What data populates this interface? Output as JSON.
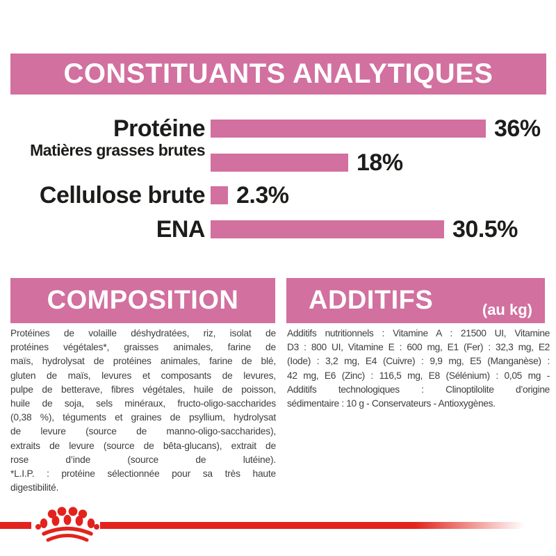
{
  "banner": {
    "title": "CONSTITUANTS ANALYTIQUES"
  },
  "chart_data": {
    "type": "bar",
    "orientation": "horizontal",
    "title": "CONSTITUANTS ANALYTIQUES",
    "unit": "%",
    "categories": [
      "Protéine",
      "Matières grasses brutes",
      "Cellulose brute",
      "ENA"
    ],
    "values": [
      36,
      18,
      2.3,
      30.5
    ],
    "value_labels": [
      "36%",
      "18%",
      "2.3%",
      "30.5%"
    ],
    "xlim": [
      0,
      36.9
    ],
    "bar_color": "#d2709f",
    "grid": false,
    "legend": "none"
  },
  "composition": {
    "heading": "COMPOSITION",
    "lines": [
      "Protéines de volaille déshydratées, riz, isolat de",
      "protéines végétales*, graisses animales, farine de",
      "maïs, hydrolysat de protéines animales, farine de blé,",
      "gluten de maïs, levures et composants de levures,",
      "pulpe de betterave, fibres végétales, huile de poisson,",
      "huile de soja, sels minéraux, fructo-oligo-saccharides",
      "(0,38 %), téguments et graines de psyllium, hydrolysat",
      "de levure (source de manno-oligo-saccharides),",
      "extraits de levure (source de bêta-glucans), extrait de",
      "rose d’inde (source de lutéine).",
      "*L.I.P. : protéine sélectionnée pour sa très haute",
      "digestibilité."
    ]
  },
  "additifs": {
    "heading": "ADDITIFS",
    "heading_suffix": "(au kg)",
    "lines": [
      "Additifs nutritionnels : Vitamine A : 21500 UI, Vitamine",
      "D3 : 800 UI, Vitamine E : 600 mg, E1 (Fer) : 32,3 mg, E2",
      "(Iode) : 3,2 mg, E4 (Cuivre) : 9,9 mg, E5 (Manganèse) :",
      "42 mg, E6 (Zinc) : 116,5 mg, E8 (Sélénium) : 0,05 mg -",
      "Additifs technologiques : Clinoptilolite d’origine",
      "sédimentaire : 10 g - Conservateurs - Antioxygènes."
    ]
  },
  "footer": {
    "logo": "royal-canin-crown-logo"
  },
  "colors": {
    "pink": "#d2709f",
    "red": "#e2231d",
    "text_dark": "#1c1c1a",
    "text_body": "#3d3d3c",
    "background": "#ffffff"
  }
}
